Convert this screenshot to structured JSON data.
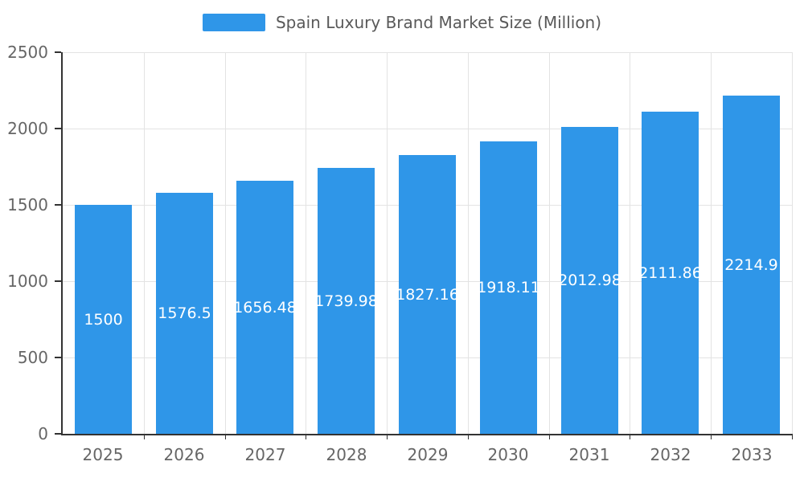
{
  "chart_data": {
    "type": "bar",
    "title": "Spain Luxury Brand Market Size (Million)",
    "categories": [
      "2025",
      "2026",
      "2027",
      "2028",
      "2029",
      "2030",
      "2031",
      "2032",
      "2033"
    ],
    "values": [
      1500,
      1576.5,
      1656.48,
      1739.98,
      1827.16,
      1918.11,
      2012.98,
      2111.86,
      2214.9
    ],
    "value_labels": [
      "1500",
      "1576.5",
      "1656.48",
      "1739.98",
      "1827.16",
      "1918.11",
      "2012.98",
      "2111.86",
      "2214.9"
    ],
    "xlabel": "",
    "ylabel": "",
    "ylim": [
      0,
      2500
    ],
    "y_ticks": [
      0,
      500,
      1000,
      1500,
      2000,
      2500
    ],
    "grid": true,
    "legend_position": "top",
    "bar_color": "#2F96E8",
    "value_label_color": "#ffffff",
    "axis_text_color": "#666666",
    "grid_color": "#e3e3e3",
    "axis_line_color": "#333333"
  }
}
